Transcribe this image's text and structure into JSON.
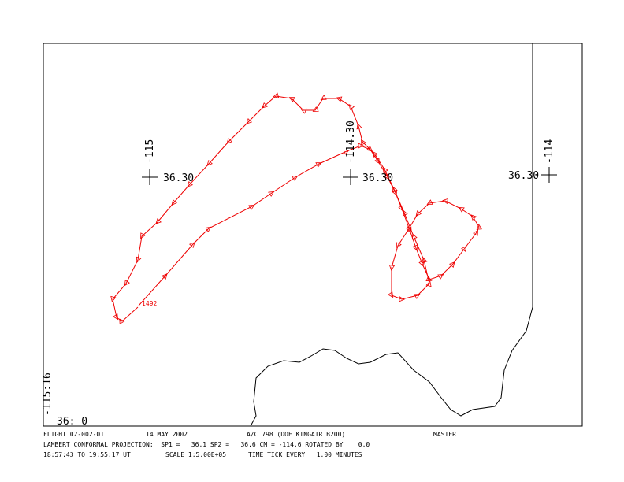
{
  "map": {
    "labels": [
      {
        "lon": "-115",
        "lat": "36.30"
      },
      {
        "lon": "-114.30",
        "lat": "36.30"
      },
      {
        "lon": "-114",
        "lat": "36.30"
      }
    ],
    "corner_lon": "-115:16",
    "corner_lat": "36: 0",
    "start_time": "1492"
  },
  "footer": {
    "flight": "FLIGHT 02-002-01",
    "date": "14 MAY 2002",
    "aircraft": "A/C 798 (DOE KINGAIR B200)",
    "status": "MASTER",
    "projection": "LAMBERT CONFORMAL PROJECTION:  SP1 =   36.1 SP2 =   36.6 CM = -114.6 ROTATED BY    0.0",
    "time_range": "18:57:43 TO 19:55:17 UT",
    "scale": "SCALE 1:5.00E+05",
    "tick": "TIME TICK EVERY   1.00 MINUTES"
  }
}
